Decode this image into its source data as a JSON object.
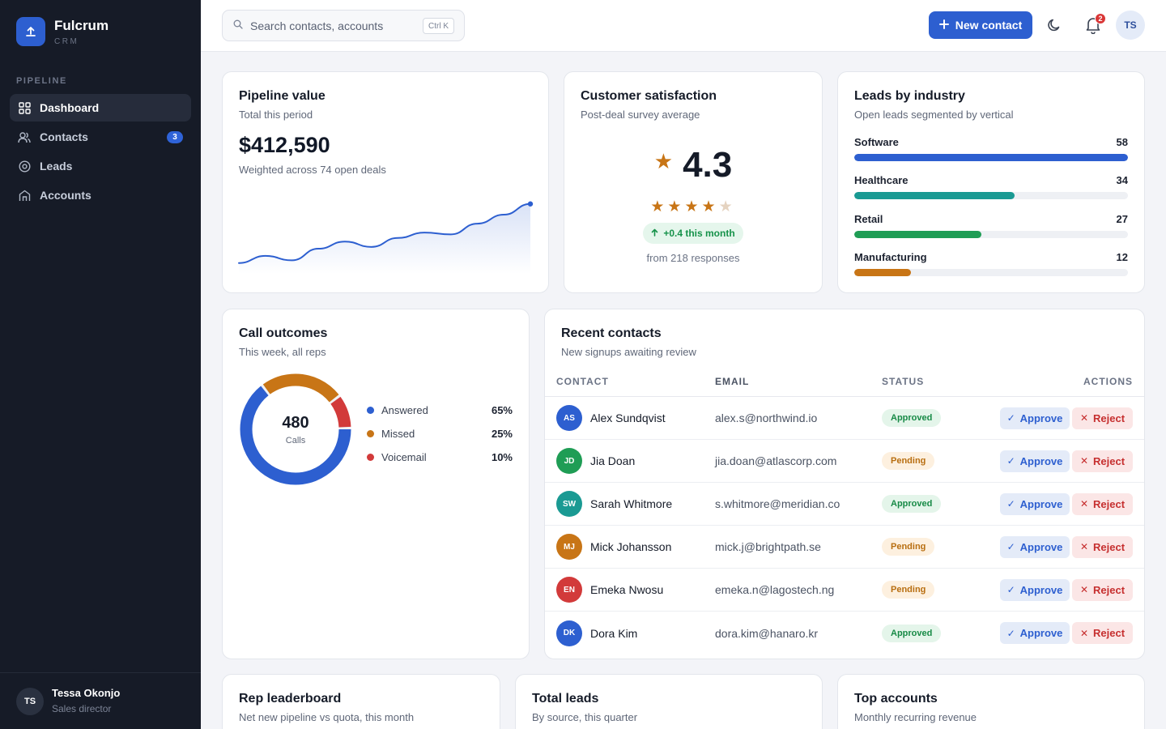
{
  "app": {
    "name": "Fulcrum",
    "sub": "CRM"
  },
  "sidebar": {
    "section": "PIPELINE",
    "items": [
      {
        "label": "Dashboard",
        "icon": "grid-icon",
        "active": true
      },
      {
        "label": "Contacts",
        "icon": "users-icon",
        "badge": "3"
      },
      {
        "label": "Leads",
        "icon": "target-icon"
      },
      {
        "label": "Accounts",
        "icon": "building-icon"
      }
    ],
    "user": {
      "initials": "TS",
      "name": "Tessa Okonjo",
      "role": "Sales director"
    }
  },
  "topbar": {
    "search_placeholder": "Search contacts, accounts",
    "search_shortcut": "Ctrl K",
    "new_button": "New contact",
    "notifications": "2",
    "avatar": "TS"
  },
  "pipeline": {
    "title": "Pipeline value",
    "subtitle": "Total this period",
    "value": "$412,590",
    "note": "Weighted across 74 open deals",
    "trend": [
      12,
      20,
      15,
      28,
      36,
      30,
      40,
      46,
      44,
      56,
      66,
      78
    ]
  },
  "satisfaction": {
    "title": "Customer satisfaction",
    "subtitle": "Post-deal survey average",
    "rating": "4.3",
    "stars": 4.3,
    "delta": "+0.4 this month",
    "responses": "from 218 responses"
  },
  "industry": {
    "title": "Leads by industry",
    "subtitle": "Open leads segmented by vertical",
    "max": 58,
    "items": [
      {
        "label": "Software",
        "value": "58",
        "color": "#2d5fd0"
      },
      {
        "label": "Healthcare",
        "value": "34",
        "color": "#1a9a93"
      },
      {
        "label": "Retail",
        "value": "27",
        "color": "#1f9d55"
      },
      {
        "label": "Manufacturing",
        "value": "12",
        "color": "#c87516"
      }
    ]
  },
  "calls": {
    "title": "Call outcomes",
    "subtitle": "This week, all reps",
    "total": "480",
    "total_label": "Calls",
    "items": [
      {
        "label": "Answered",
        "value": "65%",
        "color": "#2d5fd0"
      },
      {
        "label": "Missed",
        "value": "25%",
        "color": "#c87516"
      },
      {
        "label": "Voicemail",
        "value": "10%",
        "color": "#d23a3a"
      }
    ]
  },
  "contacts": {
    "title": "Recent contacts",
    "subtitle": "New signups awaiting review",
    "columns": [
      "CONTACT",
      "EMAIL",
      "STATUS",
      "ACTIONS"
    ],
    "approve_label": "Approve",
    "reject_label": "Reject",
    "rows": [
      {
        "initials": "AS",
        "name": "Alex Sundqvist",
        "email": "alex.s@northwind.io",
        "status": "Approved",
        "color": "#2d5fd0"
      },
      {
        "initials": "JD",
        "name": "Jia Doan",
        "email": "jia.doan@atlascorp.com",
        "status": "Pending",
        "color": "#1f9d55"
      },
      {
        "initials": "SW",
        "name": "Sarah Whitmore",
        "email": "s.whitmore@meridian.co",
        "status": "Approved",
        "color": "#1a9a93"
      },
      {
        "initials": "MJ",
        "name": "Mick Johansson",
        "email": "mick.j@brightpath.se",
        "status": "Pending",
        "color": "#c87516"
      },
      {
        "initials": "EN",
        "name": "Emeka Nwosu",
        "email": "emeka.n@lagostech.ng",
        "status": "Pending",
        "color": "#d23a3a"
      },
      {
        "initials": "DK",
        "name": "Dora Kim",
        "email": "dora.kim@hanaro.kr",
        "status": "Approved",
        "color": "#2d5fd0"
      }
    ]
  },
  "bottom": [
    {
      "title": "Rep leaderboard",
      "subtitle": "Net new pipeline vs quota, this month"
    },
    {
      "title": "Total leads",
      "subtitle": "By source, this quarter"
    },
    {
      "title": "Top accounts",
      "subtitle": "Monthly recurring revenue"
    }
  ]
}
